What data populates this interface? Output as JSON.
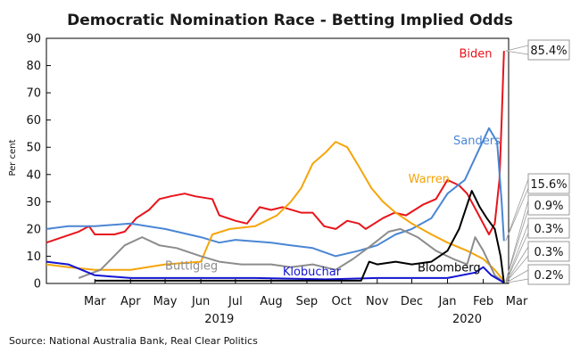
{
  "chart_data": {
    "type": "line",
    "title": "Democratic Nomination Race - Betting Implied Odds",
    "ylabel": "Per cent",
    "ylim": [
      0,
      90
    ],
    "yticks": [
      0,
      10,
      20,
      30,
      40,
      50,
      60,
      70,
      80,
      90
    ],
    "xlim": [
      "2019-02-01",
      "2020-03-08"
    ],
    "month_ticks": [
      {
        "label": "Mar",
        "date": "2019-03-15"
      },
      {
        "label": "Apr",
        "date": "2019-04-15"
      },
      {
        "label": "May",
        "date": "2019-05-15"
      },
      {
        "label": "Jun",
        "date": "2019-06-15"
      },
      {
        "label": "Jul",
        "date": "2019-07-15"
      },
      {
        "label": "Aug",
        "date": "2019-08-15"
      },
      {
        "label": "Sep",
        "date": "2019-09-15"
      },
      {
        "label": "Oct",
        "date": "2019-10-15"
      },
      {
        "label": "Nov",
        "date": "2019-11-15"
      },
      {
        "label": "Dec",
        "date": "2019-12-15"
      },
      {
        "label": "Jan",
        "date": "2020-01-15"
      },
      {
        "label": "Feb",
        "date": "2020-02-15"
      },
      {
        "label": "Mar",
        "date": "2020-03-15"
      }
    ],
    "year_labels": [
      {
        "label": "2019",
        "date": "2019-07-01"
      },
      {
        "label": "2020",
        "date": "2020-02-01"
      }
    ],
    "source": "Source: National Australia Bank, Real Clear Politics",
    "series": [
      {
        "name": "Biden",
        "color": "#e8141b",
        "points": [
          [
            "2019-02-01",
            15
          ],
          [
            "2019-02-15",
            17
          ],
          [
            "2019-03-01",
            19
          ],
          [
            "2019-03-10",
            21
          ],
          [
            "2019-03-15",
            18
          ],
          [
            "2019-04-01",
            18
          ],
          [
            "2019-04-10",
            19
          ],
          [
            "2019-04-20",
            24
          ],
          [
            "2019-05-01",
            27
          ],
          [
            "2019-05-10",
            31
          ],
          [
            "2019-05-20",
            32
          ],
          [
            "2019-06-01",
            33
          ],
          [
            "2019-06-10",
            32
          ],
          [
            "2019-06-25",
            31
          ],
          [
            "2019-07-01",
            25
          ],
          [
            "2019-07-15",
            23
          ],
          [
            "2019-07-25",
            22
          ],
          [
            "2019-08-05",
            28
          ],
          [
            "2019-08-15",
            27
          ],
          [
            "2019-08-25",
            28
          ],
          [
            "2019-09-10",
            26
          ],
          [
            "2019-09-20",
            26
          ],
          [
            "2019-09-30",
            21
          ],
          [
            "2019-10-10",
            20
          ],
          [
            "2019-10-20",
            23
          ],
          [
            "2019-10-30",
            22
          ],
          [
            "2019-11-05",
            20
          ],
          [
            "2019-11-20",
            24
          ],
          [
            "2019-11-30",
            26
          ],
          [
            "2019-12-10",
            25
          ],
          [
            "2019-12-25",
            29
          ],
          [
            "2020-01-05",
            31
          ],
          [
            "2020-01-15",
            38
          ],
          [
            "2020-01-25",
            36
          ],
          [
            "2020-02-01",
            33
          ],
          [
            "2020-02-10",
            26
          ],
          [
            "2020-02-20",
            18
          ],
          [
            "2020-02-25",
            22
          ],
          [
            "2020-02-29",
            38
          ],
          [
            "2020-03-02",
            60
          ],
          [
            "2020-03-04",
            85.4
          ]
        ]
      },
      {
        "name": "Sanders",
        "color": "#4a86d4",
        "points": [
          [
            "2019-02-01",
            20
          ],
          [
            "2019-02-20",
            21
          ],
          [
            "2019-03-15",
            21
          ],
          [
            "2019-04-15",
            22
          ],
          [
            "2019-05-15",
            20
          ],
          [
            "2019-06-15",
            17
          ],
          [
            "2019-07-01",
            15
          ],
          [
            "2019-07-15",
            16
          ],
          [
            "2019-08-15",
            15
          ],
          [
            "2019-09-01",
            14
          ],
          [
            "2019-09-20",
            13
          ],
          [
            "2019-10-10",
            10
          ],
          [
            "2019-10-30",
            12
          ],
          [
            "2019-11-15",
            14
          ],
          [
            "2019-12-01",
            18
          ],
          [
            "2019-12-15",
            20
          ],
          [
            "2020-01-01",
            24
          ],
          [
            "2020-01-15",
            33
          ],
          [
            "2020-01-30",
            38
          ],
          [
            "2020-02-10",
            48
          ],
          [
            "2020-02-20",
            57
          ],
          [
            "2020-02-27",
            52
          ],
          [
            "2020-03-02",
            30
          ],
          [
            "2020-03-04",
            15.6
          ]
        ]
      },
      {
        "name": "Warren",
        "color": "#f5a50b",
        "points": [
          [
            "2019-02-01",
            7
          ],
          [
            "2019-02-20",
            6
          ],
          [
            "2019-03-15",
            5
          ],
          [
            "2019-04-15",
            5
          ],
          [
            "2019-05-15",
            7
          ],
          [
            "2019-06-15",
            8
          ],
          [
            "2019-06-25",
            18
          ],
          [
            "2019-07-10",
            20
          ],
          [
            "2019-08-01",
            21
          ],
          [
            "2019-08-20",
            25
          ],
          [
            "2019-09-01",
            30
          ],
          [
            "2019-09-10",
            35
          ],
          [
            "2019-09-20",
            44
          ],
          [
            "2019-10-01",
            48
          ],
          [
            "2019-10-10",
            52
          ],
          [
            "2019-10-20",
            50
          ],
          [
            "2019-10-30",
            43
          ],
          [
            "2019-11-10",
            35
          ],
          [
            "2019-11-20",
            30
          ],
          [
            "2019-12-01",
            26
          ],
          [
            "2019-12-15",
            22
          ],
          [
            "2020-01-01",
            18
          ],
          [
            "2020-01-15",
            15
          ],
          [
            "2020-02-01",
            12
          ],
          [
            "2020-02-15",
            9
          ],
          [
            "2020-02-25",
            5
          ],
          [
            "2020-03-04",
            0.9
          ]
        ]
      },
      {
        "name": "Buttigieg",
        "color": "#8c8c8c",
        "points": [
          [
            "2019-03-01",
            2
          ],
          [
            "2019-03-20",
            5
          ],
          [
            "2019-04-10",
            14
          ],
          [
            "2019-04-25",
            17
          ],
          [
            "2019-05-10",
            14
          ],
          [
            "2019-05-25",
            13
          ],
          [
            "2019-06-15",
            10
          ],
          [
            "2019-07-01",
            8
          ],
          [
            "2019-07-20",
            7
          ],
          [
            "2019-08-15",
            7
          ],
          [
            "2019-09-01",
            6
          ],
          [
            "2019-09-20",
            7
          ],
          [
            "2019-10-10",
            5
          ],
          [
            "2019-10-25",
            9
          ],
          [
            "2019-11-10",
            14
          ],
          [
            "2019-11-25",
            19
          ],
          [
            "2019-12-05",
            20
          ],
          [
            "2019-12-20",
            17
          ],
          [
            "2020-01-05",
            12
          ],
          [
            "2020-01-20",
            9
          ],
          [
            "2020-02-01",
            7
          ],
          [
            "2020-02-08",
            17
          ],
          [
            "2020-02-15",
            12
          ],
          [
            "2020-02-25",
            3
          ],
          [
            "2020-03-04",
            0.3
          ]
        ]
      },
      {
        "name": "Klobuchar",
        "color": "#1414d2",
        "points": [
          [
            "2019-02-01",
            8
          ],
          [
            "2019-02-20",
            7
          ],
          [
            "2019-03-15",
            3
          ],
          [
            "2019-04-15",
            2
          ],
          [
            "2019-06-01",
            2
          ],
          [
            "2019-08-01",
            2
          ],
          [
            "2019-10-01",
            1.5
          ],
          [
            "2019-11-15",
            2
          ],
          [
            "2019-12-15",
            2
          ],
          [
            "2020-01-15",
            2
          ],
          [
            "2020-02-08",
            4
          ],
          [
            "2020-02-15",
            6
          ],
          [
            "2020-02-22",
            3
          ],
          [
            "2020-03-04",
            0.3
          ]
        ]
      },
      {
        "name": "Bloomberg",
        "color": "#000000",
        "points": [
          [
            "2019-03-15",
            1
          ],
          [
            "2019-06-01",
            1
          ],
          [
            "2019-09-01",
            1
          ],
          [
            "2019-11-01",
            1
          ],
          [
            "2019-11-08",
            8
          ],
          [
            "2019-11-15",
            7
          ],
          [
            "2019-12-01",
            8
          ],
          [
            "2019-12-15",
            7
          ],
          [
            "2020-01-01",
            8
          ],
          [
            "2020-01-15",
            12
          ],
          [
            "2020-01-25",
            20
          ],
          [
            "2020-02-05",
            34
          ],
          [
            "2020-02-12",
            28
          ],
          [
            "2020-02-18",
            24
          ],
          [
            "2020-02-25",
            20
          ],
          [
            "2020-03-01",
            10
          ],
          [
            "2020-03-04",
            0.2
          ]
        ]
      }
    ],
    "series_labels": [
      {
        "text": "Biden",
        "color": "#e8141b",
        "at": [
          "2020-01-25",
          83
        ]
      },
      {
        "text": "Sanders",
        "color": "#4a86d4",
        "at": [
          "2020-01-20",
          51
        ]
      },
      {
        "text": "Warren",
        "color": "#f5a50b",
        "at": [
          "2019-12-12",
          37
        ]
      },
      {
        "text": "Buttigieg",
        "color": "#8c8c8c",
        "at": [
          "2019-05-15",
          5
        ]
      },
      {
        "text": "Klobuchar",
        "color": "#1414d2",
        "at": [
          "2019-08-25",
          3
        ]
      },
      {
        "text": "Bloomberg",
        "color": "#000000",
        "at": [
          "2019-12-20",
          4.5
        ]
      }
    ],
    "end_labels": [
      {
        "text": "85.4%",
        "color": "#e8141b",
        "value": 85.4
      },
      {
        "text": "15.6%",
        "color": "#4a86d4",
        "value": 15.6
      },
      {
        "text": "0.9%",
        "color": "#f5a50b",
        "value": 0.9
      },
      {
        "text": "0.3%",
        "color": "#8c8c8c",
        "value": 0.3
      },
      {
        "text": "0.3%",
        "color": "#1414d2",
        "value": 0.3
      },
      {
        "text": "0.2%",
        "color": "#000000",
        "value": 0.2
      }
    ]
  }
}
